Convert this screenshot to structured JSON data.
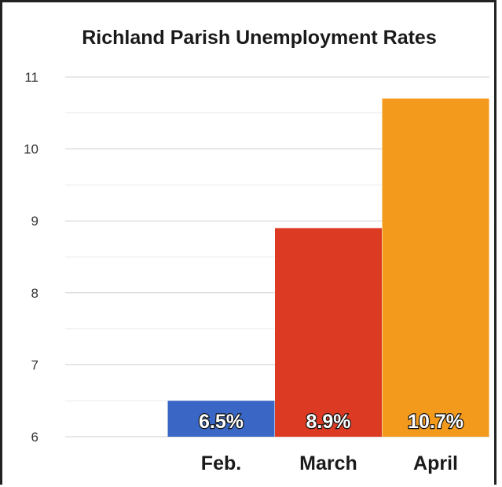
{
  "chart_data": {
    "type": "bar",
    "title": "Richland Parish Unemployment Rates",
    "categories": [
      "Feb.",
      "March",
      "April"
    ],
    "values": [
      6.5,
      8.9,
      10.7
    ],
    "data_labels": [
      "6.5%",
      "8.9%",
      "10.7%"
    ],
    "colors": [
      "#3a67c6",
      "#dd3a24",
      "#f39a1c"
    ],
    "ylim": [
      6,
      11
    ],
    "yticks": [
      "6",
      "7",
      "8",
      "9",
      "10",
      "11"
    ],
    "grid": true,
    "legend": "none"
  }
}
